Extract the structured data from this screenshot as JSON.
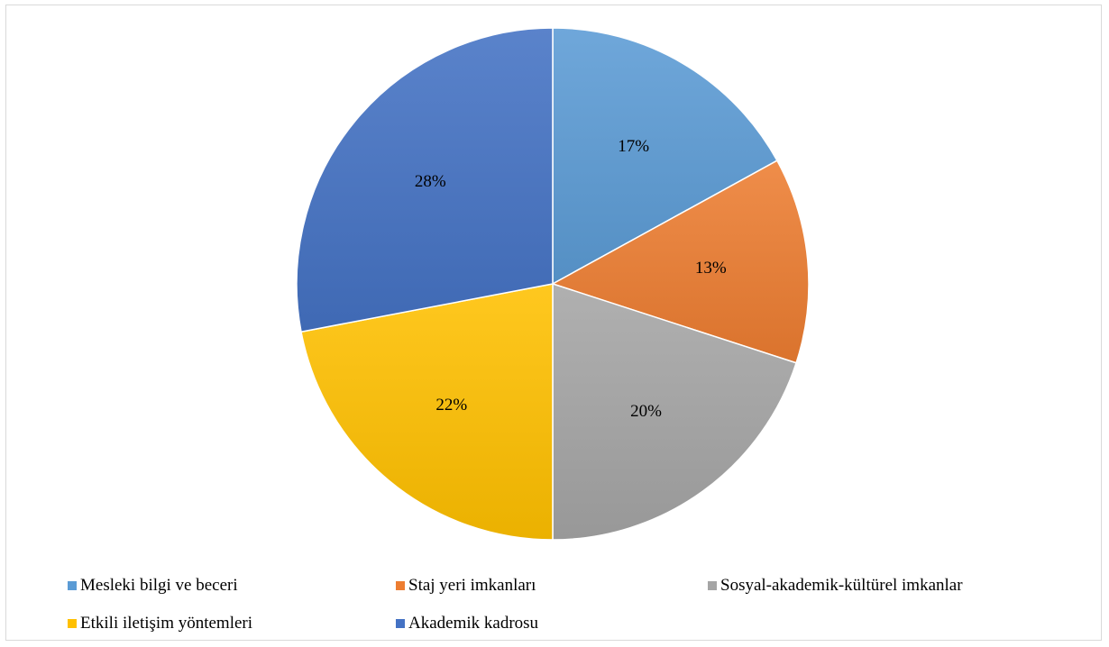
{
  "chart_data": {
    "type": "pie",
    "title": "",
    "legend_position": "bottom",
    "categories": [
      "Mesleki bilgi ve beceri",
      "Staj yeri imkanları",
      "Sosyal-akademik-kültürel imkanlar",
      "Etkili iletişim yöntemleri",
      "Akademik kadrosu"
    ],
    "values": [
      17,
      13,
      20,
      22,
      28
    ],
    "labels": [
      "17%",
      "13%",
      "20%",
      "22%",
      "28%"
    ],
    "colors": [
      "#5B9BD5",
      "#ED7D31",
      "#A5A5A5",
      "#FFC000",
      "#4472C4"
    ]
  }
}
